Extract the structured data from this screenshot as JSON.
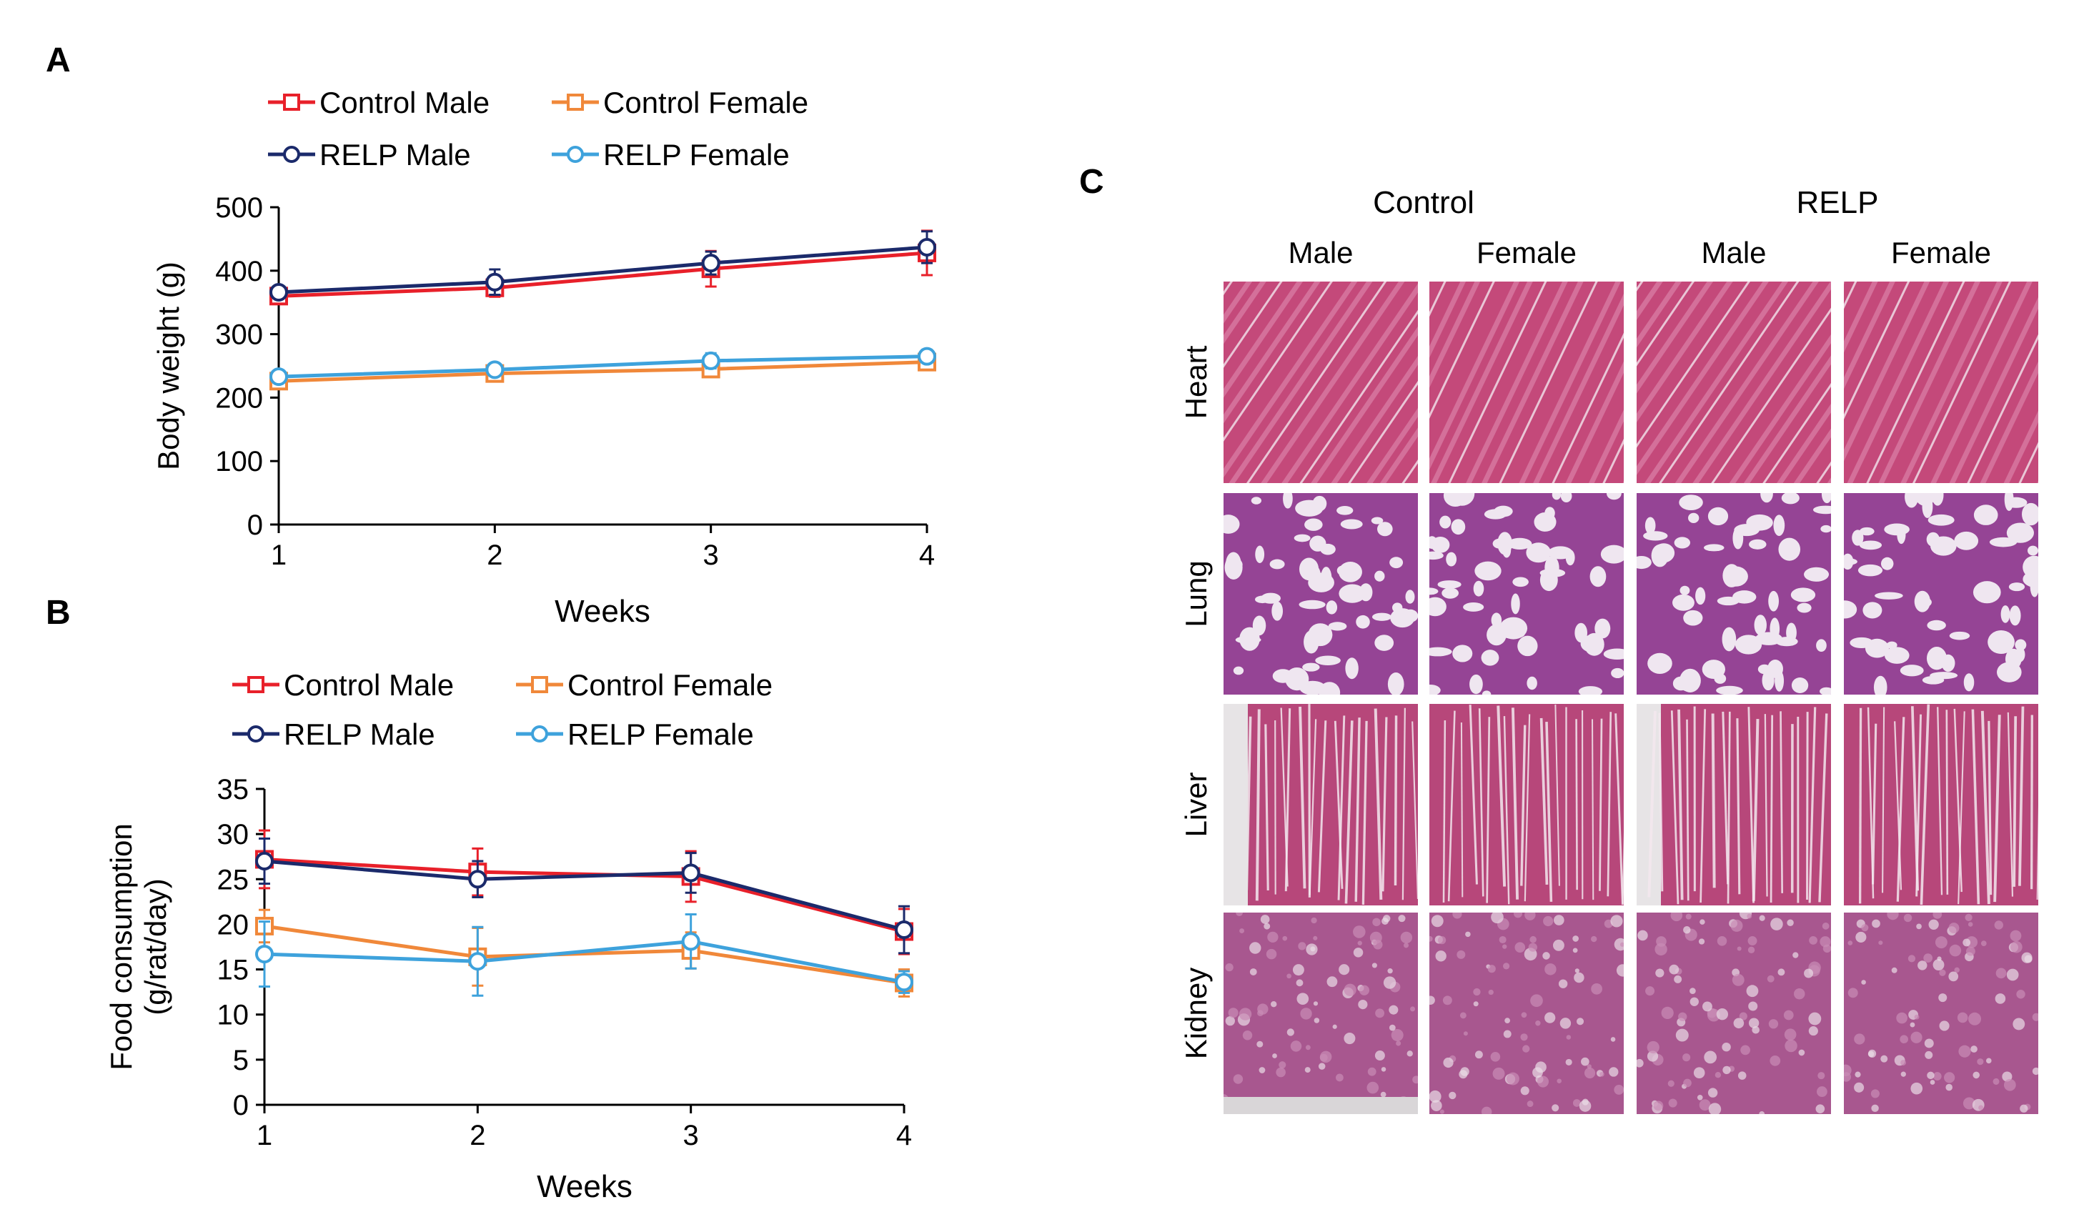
{
  "figure": {
    "panel_a_label": "A",
    "panel_b_label": "B",
    "panel_c_label": "C"
  },
  "chart_data": [
    {
      "id": "A",
      "type": "line",
      "title": "",
      "xlabel": "Weeks",
      "ylabel": "Body weight (g)",
      "x": [
        1,
        2,
        3,
        4
      ],
      "xlim": [
        1,
        4
      ],
      "ylim": [
        0,
        500
      ],
      "yticks": [
        0,
        100,
        200,
        300,
        400,
        500
      ],
      "grid": false,
      "legend": "top",
      "series": [
        {
          "name": "Control Male",
          "color": "#e8202a",
          "marker": "square",
          "values": [
            360,
            373,
            403,
            428
          ],
          "errors": [
            8,
            14,
            28,
            35
          ]
        },
        {
          "name": "Control Female",
          "color": "#f0883a",
          "marker": "square",
          "values": [
            226,
            238,
            245,
            256
          ],
          "errors": [
            6,
            8,
            10,
            10
          ]
        },
        {
          "name": "RELP Male",
          "color": "#1b2a6b",
          "marker": "circle",
          "values": [
            366,
            382,
            412,
            437
          ],
          "errors": [
            8,
            20,
            18,
            25
          ]
        },
        {
          "name": "RELP Female",
          "color": "#3ea2dc",
          "marker": "circle",
          "values": [
            233,
            244,
            258,
            265
          ],
          "errors": [
            6,
            7,
            12,
            10
          ]
        }
      ]
    },
    {
      "id": "B",
      "type": "line",
      "title": "",
      "xlabel": "Weeks",
      "ylabel": "Food consumption (g/rat/day)",
      "ylabel_lines": [
        "Food consumption",
        "(g/rat/day)"
      ],
      "x": [
        1,
        2,
        3,
        4
      ],
      "xlim": [
        1,
        4
      ],
      "ylim": [
        0,
        35
      ],
      "yticks": [
        0,
        5,
        10,
        15,
        20,
        25,
        30,
        35
      ],
      "grid": false,
      "legend": "top",
      "series": [
        {
          "name": "Control Male",
          "color": "#e8202a",
          "marker": "square",
          "values": [
            27.2,
            25.8,
            25.3,
            19.2
          ],
          "errors": [
            3.2,
            2.6,
            2.8,
            2.5
          ]
        },
        {
          "name": "Control Female",
          "color": "#f0883a",
          "marker": "square",
          "values": [
            19.8,
            16.4,
            17.1,
            13.5
          ],
          "errors": [
            1.8,
            3.2,
            2.0,
            1.5
          ]
        },
        {
          "name": "RELP Male",
          "color": "#1b2a6b",
          "marker": "circle",
          "values": [
            27.0,
            25.0,
            25.7,
            19.4
          ],
          "errors": [
            2.5,
            2.0,
            2.2,
            2.6
          ]
        },
        {
          "name": "RELP Female",
          "color": "#3ea2dc",
          "marker": "circle",
          "values": [
            16.7,
            15.9,
            18.1,
            13.6
          ],
          "errors": [
            3.6,
            3.8,
            3.0,
            1.2
          ]
        }
      ]
    }
  ],
  "histology": {
    "group_labels": [
      "Control",
      "RELP"
    ],
    "column_labels": [
      "Male",
      "Female",
      "Male",
      "Female"
    ],
    "row_labels": [
      "Heart",
      "Lung",
      "Liver",
      "Kidney"
    ],
    "tissue_colors": {
      "Heart": {
        "base": "#c4497a",
        "stripe": "#d87aa2",
        "gap": "#f3e6ee"
      },
      "Lung": {
        "base": "#8a3a8c",
        "stripe": "#a85aa6",
        "gap": "#efe6f0"
      },
      "Liver": {
        "base": "#b7477a",
        "stripe": "#d48aae",
        "gap": "#f4e8ef"
      },
      "Kidney": {
        "base": "#a8578f",
        "stripe": "#c98bb5",
        "gap": "#e9dbe6"
      }
    }
  }
}
